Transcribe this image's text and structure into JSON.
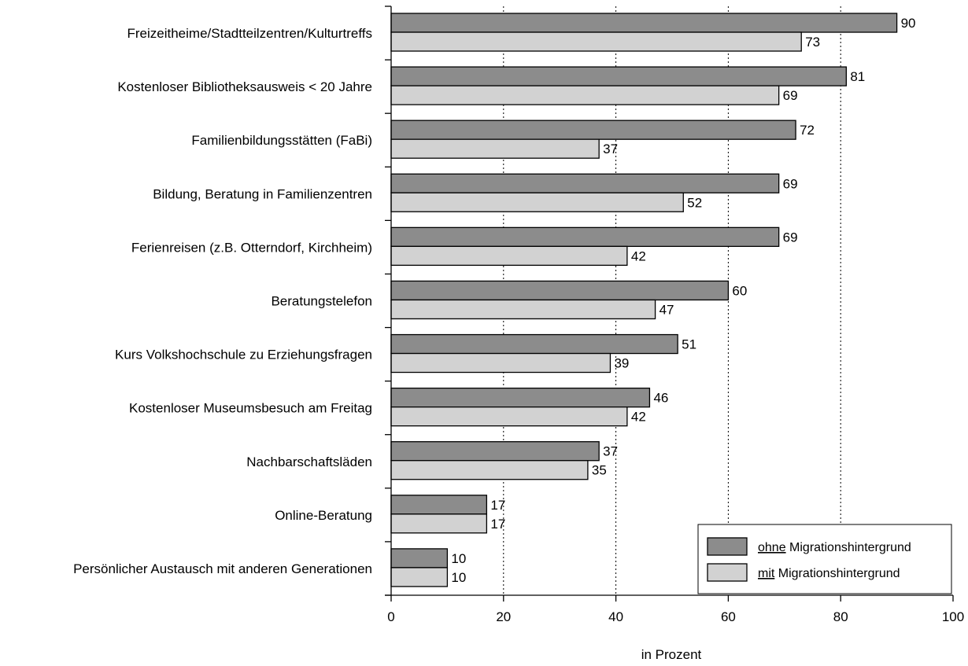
{
  "chart_data": {
    "type": "bar",
    "orientation": "horizontal",
    "categories": [
      "Freizeitheime/Stadtteilzentren/Kulturtreffs",
      "Kostenloser Bibliotheksausweis < 20 Jahre",
      "Familienbildungsstätten (FaBi)",
      "Bildung, Beratung in Familienzentren",
      "Ferienreisen (z.B. Otterndorf, Kirchheim)",
      "Beratungstelefon",
      "Kurs Volkshochschule zu Erziehungsfragen",
      "Kostenloser Museumsbesuch am Freitag",
      "Nachbarschaftsläden",
      "Online-Beratung",
      "Persönlicher Austausch mit anderen Generationen"
    ],
    "series": [
      {
        "name": "ohne Migrationshintergrund",
        "name_underlined": "ohne",
        "name_rest": " Migrationshintergrund",
        "color": "#8c8c8c",
        "values": [
          90,
          81,
          72,
          69,
          69,
          60,
          51,
          46,
          37,
          17,
          10
        ]
      },
      {
        "name": "mit Migrationshintergrund",
        "name_underlined": "mit",
        "name_rest": " Migrationshintergrund",
        "color": "#d2d2d2",
        "values": [
          73,
          69,
          37,
          52,
          42,
          47,
          39,
          42,
          35,
          17,
          10
        ]
      }
    ],
    "xlabel": "in Prozent",
    "xlim": [
      0,
      100
    ],
    "xticks": [
      0,
      20,
      40,
      60,
      80,
      100
    ],
    "grid": "vertical dotted at 20, 40, 60, 80",
    "legend_position": "bottom-right"
  }
}
